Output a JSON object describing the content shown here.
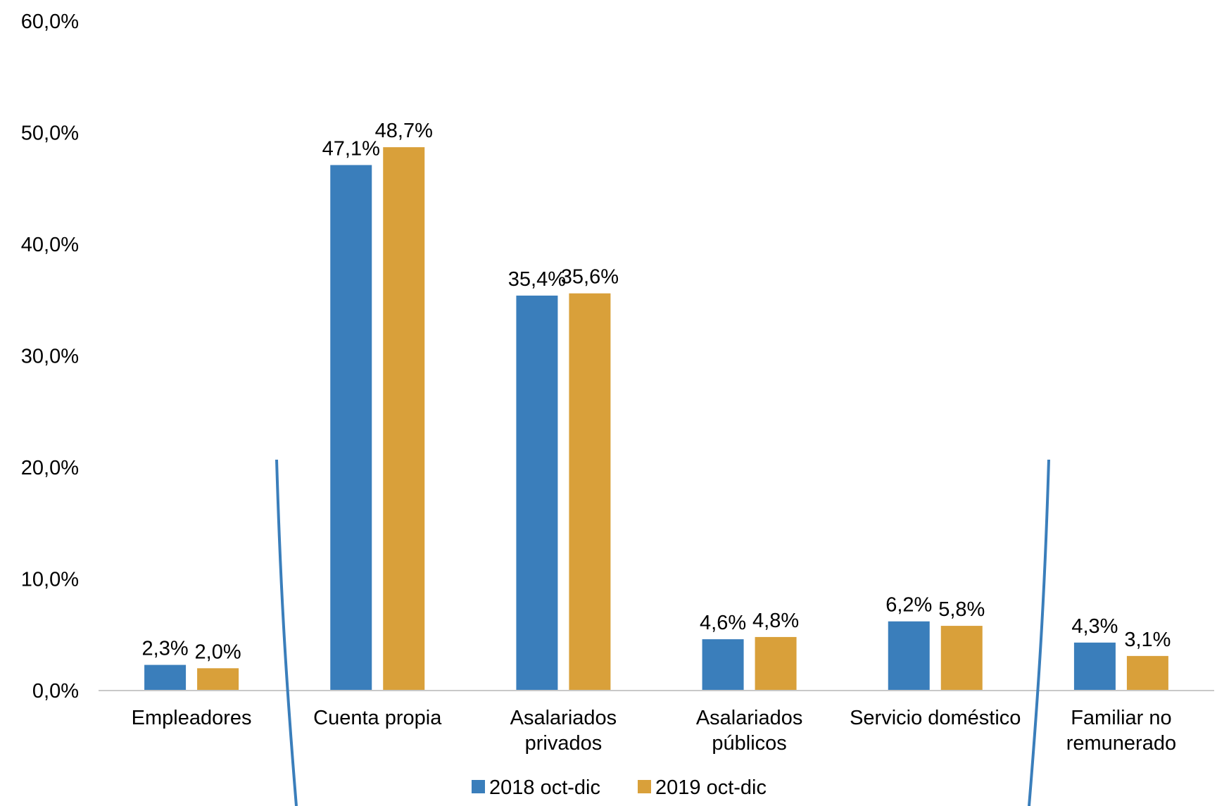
{
  "chart_data": {
    "type": "bar",
    "categories": [
      [
        "Empleadores"
      ],
      [
        "Cuenta propia"
      ],
      [
        "Asalariados",
        "privados"
      ],
      [
        "Asalariados",
        "públicos"
      ],
      [
        "Servicio doméstico"
      ],
      [
        "Familiar no",
        "remunerado"
      ]
    ],
    "series": [
      {
        "name": "2018 oct-dic",
        "color": "#3A7EBB",
        "values": [
          2.3,
          47.1,
          35.4,
          4.6,
          6.2,
          4.3
        ],
        "labels": [
          "2,3%",
          "47,1%",
          "35,4%",
          "4,6%",
          "6,2%",
          "4,3%"
        ]
      },
      {
        "name": "2019 oct-dic",
        "color": "#D9A03A",
        "values": [
          2.0,
          48.7,
          35.6,
          4.8,
          5.8,
          3.1
        ],
        "labels": [
          "2,0%",
          "48,7%",
          "35,6%",
          "4,8%",
          "5,8%",
          "3,1%"
        ]
      }
    ],
    "ylim": [
      0,
      60
    ],
    "yticks": [
      {
        "value": 0,
        "label": "0,0%"
      },
      {
        "value": 10,
        "label": "10,0%"
      },
      {
        "value": 20,
        "label": "20,0%"
      },
      {
        "value": 30,
        "label": "30,0%"
      },
      {
        "value": 40,
        "label": "40,0%"
      },
      {
        "value": 50,
        "label": "50,0%"
      },
      {
        "value": 60,
        "label": "60,0%"
      }
    ],
    "grid": false,
    "legend_position": "bottom",
    "annotations": [
      {
        "type": "bracket",
        "opens": "right",
        "color": "#3A7EBB"
      },
      {
        "type": "bracket",
        "opens": "left",
        "color": "#3A7EBB"
      }
    ],
    "axis_color": "#C8C8C8"
  }
}
